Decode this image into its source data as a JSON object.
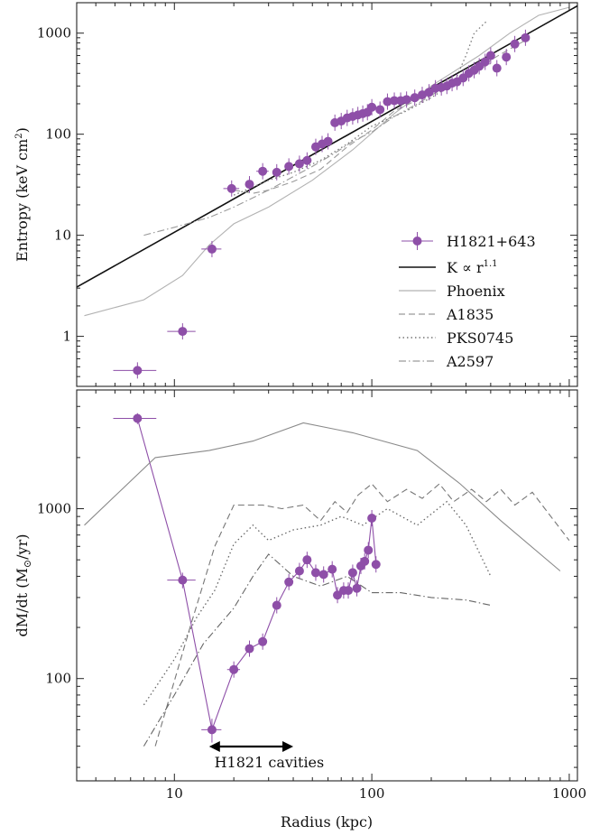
{
  "figure": {
    "xlabel": "Radius (kpc)",
    "x_ticks": [
      {
        "v": 10,
        "label": "10"
      },
      {
        "v": 100,
        "label": "100"
      },
      {
        "v": 1000,
        "label": "1000"
      }
    ],
    "cavity_label": "H1821 cavities",
    "cavity_range": [
      15,
      40
    ]
  },
  "chart_data": [
    {
      "type": "scatter",
      "ylabel_main": "Entropy (keV cm",
      "ylabel_sup": "2",
      "ylabel_end": ")",
      "x_scale": "log",
      "y_scale": "log",
      "xlim": [
        3.2,
        1100
      ],
      "ylim": [
        0.32,
        2000
      ],
      "y_ticks": [
        {
          "v": 1,
          "label": "1"
        },
        {
          "v": 10,
          "label": "10"
        },
        {
          "v": 100,
          "label": "100"
        },
        {
          "v": 1000,
          "label": "1000"
        }
      ],
      "legend_position": "bottom-right",
      "series": [
        {
          "name": "H1821+643",
          "style": "points",
          "color": "#8e4fa8",
          "points": [
            {
              "x": 6.5,
              "y": 0.46,
              "xerr": 1.6
            },
            {
              "x": 11,
              "y": 1.12,
              "xerr": 1.8
            },
            {
              "x": 15.5,
              "y": 7.3,
              "xerr": 1.8
            },
            {
              "x": 19.5,
              "y": 29,
              "xerr": 1.8
            },
            {
              "x": 24,
              "y": 32
            },
            {
              "x": 28,
              "y": 43,
              "xerr": 2
            },
            {
              "x": 33,
              "y": 42
            },
            {
              "x": 38,
              "y": 48
            },
            {
              "x": 43,
              "y": 51
            },
            {
              "x": 47,
              "y": 55
            },
            {
              "x": 52,
              "y": 75
            },
            {
              "x": 56,
              "y": 80
            },
            {
              "x": 60,
              "y": 85
            },
            {
              "x": 65,
              "y": 130
            },
            {
              "x": 70,
              "y": 135
            },
            {
              "x": 75,
              "y": 145
            },
            {
              "x": 80,
              "y": 150
            },
            {
              "x": 85,
              "y": 155
            },
            {
              "x": 90,
              "y": 160
            },
            {
              "x": 95,
              "y": 165
            },
            {
              "x": 100,
              "y": 185
            },
            {
              "x": 110,
              "y": 175
            },
            {
              "x": 120,
              "y": 210
            },
            {
              "x": 130,
              "y": 215
            },
            {
              "x": 140,
              "y": 215
            },
            {
              "x": 150,
              "y": 220
            },
            {
              "x": 165,
              "y": 230
            },
            {
              "x": 180,
              "y": 245
            },
            {
              "x": 195,
              "y": 260
            },
            {
              "x": 210,
              "y": 285
            },
            {
              "x": 225,
              "y": 290
            },
            {
              "x": 240,
              "y": 300
            },
            {
              "x": 255,
              "y": 320
            },
            {
              "x": 270,
              "y": 330
            },
            {
              "x": 290,
              "y": 360
            },
            {
              "x": 310,
              "y": 400
            },
            {
              "x": 330,
              "y": 430
            },
            {
              "x": 350,
              "y": 470
            },
            {
              "x": 375,
              "y": 520
            },
            {
              "x": 400,
              "y": 600
            },
            {
              "x": 430,
              "y": 450
            },
            {
              "x": 480,
              "y": 580
            },
            {
              "x": 530,
              "y": 780
            },
            {
              "x": 600,
              "y": 900
            }
          ]
        },
        {
          "name": "K ∝ r",
          "name_sup": "1.1",
          "style": "solid-black",
          "color": "#111111",
          "points": [
            {
              "x": 3.2,
              "y": 3.07
            },
            {
              "x": 1100,
              "y": 1862
            }
          ]
        },
        {
          "name": "Phoenix",
          "style": "solid-gray",
          "color": "#b2b2b2",
          "points": [
            {
              "x": 3.5,
              "y": 1.6
            },
            {
              "x": 7,
              "y": 2.3
            },
            {
              "x": 11,
              "y": 4
            },
            {
              "x": 15,
              "y": 8
            },
            {
              "x": 20,
              "y": 13
            },
            {
              "x": 30,
              "y": 19
            },
            {
              "x": 50,
              "y": 35
            },
            {
              "x": 80,
              "y": 70
            },
            {
              "x": 130,
              "y": 160
            },
            {
              "x": 200,
              "y": 300
            },
            {
              "x": 350,
              "y": 600
            },
            {
              "x": 500,
              "y": 1000
            },
            {
              "x": 700,
              "y": 1500
            },
            {
              "x": 1000,
              "y": 1800
            }
          ]
        },
        {
          "name": "A1835",
          "style": "dashed",
          "color": "#9a9a9a",
          "points": [
            {
              "x": 20,
              "y": 28
            },
            {
              "x": 25,
              "y": 26
            },
            {
              "x": 30,
              "y": 28
            },
            {
              "x": 40,
              "y": 34
            },
            {
              "x": 55,
              "y": 45
            },
            {
              "x": 75,
              "y": 75
            },
            {
              "x": 100,
              "y": 110
            },
            {
              "x": 130,
              "y": 170
            },
            {
              "x": 180,
              "y": 230
            },
            {
              "x": 250,
              "y": 330
            },
            {
              "x": 330,
              "y": 430
            },
            {
              "x": 450,
              "y": 620
            },
            {
              "x": 600,
              "y": 850
            }
          ]
        },
        {
          "name": "PKS0745",
          "style": "dotted",
          "color": "#777777",
          "points": [
            {
              "x": 20,
              "y": 25
            },
            {
              "x": 25,
              "y": 30
            },
            {
              "x": 30,
              "y": 35
            },
            {
              "x": 40,
              "y": 42
            },
            {
              "x": 55,
              "y": 55
            },
            {
              "x": 75,
              "y": 80
            },
            {
              "x": 100,
              "y": 120
            },
            {
              "x": 150,
              "y": 170
            },
            {
              "x": 200,
              "y": 230
            },
            {
              "x": 260,
              "y": 320
            },
            {
              "x": 300,
              "y": 600
            },
            {
              "x": 330,
              "y": 1000
            },
            {
              "x": 380,
              "y": 1300
            }
          ]
        },
        {
          "name": "A2597",
          "style": "dashdot",
          "color": "#9a9a9a",
          "points": [
            {
              "x": 7,
              "y": 10
            },
            {
              "x": 10,
              "y": 12
            },
            {
              "x": 15,
              "y": 15
            },
            {
              "x": 20,
              "y": 19
            },
            {
              "x": 30,
              "y": 28
            },
            {
              "x": 40,
              "y": 38
            },
            {
              "x": 50,
              "y": 48
            },
            {
              "x": 65,
              "y": 65
            },
            {
              "x": 80,
              "y": 85
            },
            {
              "x": 100,
              "y": 105
            },
            {
              "x": 130,
              "y": 150
            },
            {
              "x": 170,
              "y": 200
            },
            {
              "x": 220,
              "y": 270
            },
            {
              "x": 300,
              "y": 380
            },
            {
              "x": 400,
              "y": 500
            }
          ]
        }
      ]
    },
    {
      "type": "line",
      "ylabel_main": "dM/dt (M",
      "ylabel_sym": "⊙",
      "ylabel_end": "/yr)",
      "x_scale": "log",
      "y_scale": "log",
      "xlim": [
        3.2,
        1100
      ],
      "ylim": [
        25,
        5000
      ],
      "y_ticks": [
        {
          "v": 100,
          "label": "100"
        },
        {
          "v": 1000,
          "label": "1000"
        }
      ],
      "series": [
        {
          "name": "H1821+643",
          "style": "points-line",
          "color": "#8e4fa8",
          "points": [
            {
              "x": 6.5,
              "y": 3400,
              "xerr": 1.6,
              "yerr": 250
            },
            {
              "x": 11,
              "y": 380,
              "xerr": 1.8,
              "yerr": 40
            },
            {
              "x": 15.5,
              "y": 50,
              "xerr": 1.8,
              "yerr": 8
            },
            {
              "x": 20,
              "y": 113,
              "xerr": 1.5
            },
            {
              "x": 24,
              "y": 150
            },
            {
              "x": 28,
              "y": 165
            },
            {
              "x": 33,
              "y": 270
            },
            {
              "x": 38,
              "y": 370
            },
            {
              "x": 43,
              "y": 430
            },
            {
              "x": 47,
              "y": 500
            },
            {
              "x": 52,
              "y": 420
            },
            {
              "x": 57,
              "y": 410
            },
            {
              "x": 63,
              "y": 440
            },
            {
              "x": 67,
              "y": 310
            },
            {
              "x": 72,
              "y": 330
            },
            {
              "x": 76,
              "y": 330
            },
            {
              "x": 80,
              "y": 420
            },
            {
              "x": 84,
              "y": 340
            },
            {
              "x": 88,
              "y": 460
            },
            {
              "x": 92,
              "y": 490
            },
            {
              "x": 96,
              "y": 570
            },
            {
              "x": 100,
              "y": 880
            },
            {
              "x": 105,
              "y": 470
            }
          ]
        },
        {
          "name": "Phoenix",
          "style": "solid-gray",
          "color": "#8a8a8a",
          "points": [
            {
              "x": 3.5,
              "y": 800
            },
            {
              "x": 8,
              "y": 2000
            },
            {
              "x": 15,
              "y": 2200
            },
            {
              "x": 25,
              "y": 2500
            },
            {
              "x": 45,
              "y": 3200
            },
            {
              "x": 80,
              "y": 2800
            },
            {
              "x": 170,
              "y": 2200
            },
            {
              "x": 280,
              "y": 1400
            },
            {
              "x": 450,
              "y": 850
            },
            {
              "x": 900,
              "y": 430
            }
          ]
        },
        {
          "name": "A1835",
          "style": "dashed",
          "color": "#777777",
          "points": [
            {
              "x": 8,
              "y": 40
            },
            {
              "x": 12,
              "y": 200
            },
            {
              "x": 16,
              "y": 600
            },
            {
              "x": 20,
              "y": 1050
            },
            {
              "x": 28,
              "y": 1050
            },
            {
              "x": 35,
              "y": 1000
            },
            {
              "x": 45,
              "y": 1050
            },
            {
              "x": 55,
              "y": 850
            },
            {
              "x": 65,
              "y": 1100
            },
            {
              "x": 75,
              "y": 950
            },
            {
              "x": 85,
              "y": 1200
            },
            {
              "x": 100,
              "y": 1400
            },
            {
              "x": 120,
              "y": 1100
            },
            {
              "x": 150,
              "y": 1300
            },
            {
              "x": 180,
              "y": 1150
            },
            {
              "x": 220,
              "y": 1400
            },
            {
              "x": 260,
              "y": 1100
            },
            {
              "x": 320,
              "y": 1300
            },
            {
              "x": 380,
              "y": 1100
            },
            {
              "x": 450,
              "y": 1300
            },
            {
              "x": 530,
              "y": 1050
            },
            {
              "x": 650,
              "y": 1250
            },
            {
              "x": 1000,
              "y": 650
            }
          ]
        },
        {
          "name": "PKS0745",
          "style": "dotted",
          "color": "#666666",
          "points": [
            {
              "x": 7,
              "y": 70
            },
            {
              "x": 10,
              "y": 130
            },
            {
              "x": 13,
              "y": 230
            },
            {
              "x": 16,
              "y": 330
            },
            {
              "x": 20,
              "y": 620
            },
            {
              "x": 25,
              "y": 800
            },
            {
              "x": 30,
              "y": 650
            },
            {
              "x": 40,
              "y": 750
            },
            {
              "x": 55,
              "y": 800
            },
            {
              "x": 70,
              "y": 900
            },
            {
              "x": 90,
              "y": 800
            },
            {
              "x": 120,
              "y": 1000
            },
            {
              "x": 170,
              "y": 800
            },
            {
              "x": 240,
              "y": 1100
            },
            {
              "x": 300,
              "y": 800
            },
            {
              "x": 400,
              "y": 400
            }
          ]
        },
        {
          "name": "A2597",
          "style": "dashdot",
          "color": "#666666",
          "points": [
            {
              "x": 7,
              "y": 40
            },
            {
              "x": 10,
              "y": 80
            },
            {
              "x": 14,
              "y": 160
            },
            {
              "x": 20,
              "y": 260
            },
            {
              "x": 25,
              "y": 400
            },
            {
              "x": 30,
              "y": 540
            },
            {
              "x": 40,
              "y": 400
            },
            {
              "x": 55,
              "y": 350
            },
            {
              "x": 75,
              "y": 400
            },
            {
              "x": 100,
              "y": 320
            },
            {
              "x": 140,
              "y": 320
            },
            {
              "x": 200,
              "y": 300
            },
            {
              "x": 300,
              "y": 290
            },
            {
              "x": 400,
              "y": 270
            }
          ]
        }
      ]
    }
  ]
}
